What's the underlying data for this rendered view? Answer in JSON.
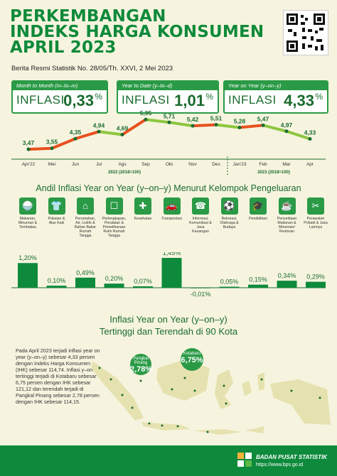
{
  "header": {
    "title_line1": "PERKEMBANGAN",
    "title_line2": "INDEKS HARGA KONSUMEN",
    "title_line3": "APRIL 2023",
    "subtitle": "Berita Resmi Statistik No. 28/05/Th. XXVI, 2 Mei 2023"
  },
  "cards": [
    {
      "caption": "Month to Month (m–to–m)",
      "label": "INFLASI",
      "value": "0,33",
      "unit": "%"
    },
    {
      "caption": "Year to Date (y–to–d)",
      "label": "INFLASI",
      "value": "1,01",
      "unit": "%"
    },
    {
      "caption": "Year on Year (y–on–y)",
      "label": "INFLASI",
      "value": "4,33",
      "unit": "%"
    }
  ],
  "chart_data": [
    {
      "type": "line",
      "x": [
        "Apr'22",
        "Mei",
        "Jun",
        "Jul",
        "Ags",
        "Sep",
        "Okt",
        "Nov",
        "Des",
        "Jan'23",
        "Feb",
        "Mar",
        "Apr"
      ],
      "series": [
        {
          "values": [
            3.47,
            3.55,
            4.35,
            4.94,
            4.69,
            5.95,
            5.71,
            5.42,
            5.51,
            5.28,
            5.47,
            4.97,
            4.33
          ]
        }
      ],
      "value_labels": [
        "3,47",
        "3,55",
        "4,35",
        "4,94",
        "4,69",
        "5,95",
        "5,71",
        "5,42",
        "5,51",
        "5,28",
        "5,47",
        "4,97",
        "4,33"
      ],
      "group_labels": [
        "2022 (2018=100)",
        "2023 (2018=100)"
      ],
      "colors": {
        "up": "#e8501e",
        "down": "#8cc63f"
      }
    },
    {
      "type": "bar",
      "title": "Andil Inflasi Year on Year (y–on–y) Menurut Kelompok Pengeluaran",
      "categories": [
        "Makanan, Minuman & Tembakau",
        "Pakaian & Alas Kaki",
        "Perumahan, Air, Listrik & Bahan Bakar Rumah Tangga",
        "Perlengkapan, Peralatan & Pemeliharaan Rutin Rumah Tangga",
        "Kesehatan",
        "Transportasi",
        "Informasi, Komunikasi & Jasa Keuangan",
        "Rekreasi, Olahraga & Budaya",
        "Pendidikan",
        "Penyediaan Makanan & Minuman/ Restoran",
        "Perawatan Pribadi & Jasa Lainnya"
      ],
      "values": [
        1.2,
        0.1,
        0.49,
        0.2,
        0.07,
        1.45,
        -0.01,
        0.05,
        0.15,
        0.34,
        0.29
      ],
      "value_labels": [
        "1,20%",
        "0,10%",
        "0,49%",
        "0,20%",
        "0,07%",
        "1,45%",
        "-0,01%",
        "0,05%",
        "0,15%",
        "0,34%",
        "0,29%"
      ],
      "icons": [
        "food-icon",
        "shirt-icon",
        "house-icon",
        "furniture-icon",
        "health-icon",
        "car-icon",
        "phone-icon",
        "sport-icon",
        "graduation-icon",
        "restaurant-icon",
        "care-icon"
      ],
      "color": "#0e8a3c"
    }
  ],
  "map_section": {
    "title_line1": "Inflasi Year on Year (y–on–y)",
    "title_line2": "Tertinggi dan Terendah di 90 Kota",
    "paragraph": "Pada April 2023 terjadi inflasi year on year (y–on–y) sebesar 4,33 persen dengan Indeks Harga Konsumen (IHK) sebesar 114,74. Inflasi y–on–y tertinggi terjadi di Kotabaru sebesar 6,75 persen dengan IHK sebesar 121,12 dan terendah terjadi di Pangkal Pinang sebesar 2,78 persen dengan IHK sebesar 114,15.",
    "lowest": {
      "city": "Pangkal Pinang",
      "value": "2,78%"
    },
    "highest": {
      "city": "Kotabaru",
      "value": "6,75%"
    }
  },
  "footer": {
    "agency": "BADAN PUSAT STATISTIK",
    "url": "https://www.bps.go.id"
  }
}
